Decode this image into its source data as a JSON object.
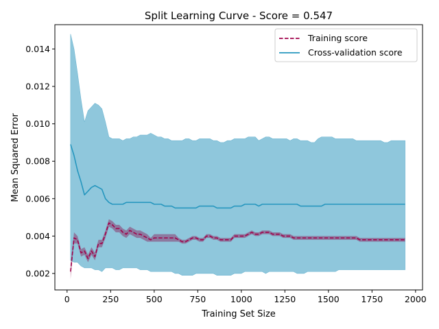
{
  "chart_data": {
    "type": "line",
    "title": "Split Learning Curve - Score = 0.547",
    "xlabel": "Training Set Size",
    "ylabel": "Mean Squared Error",
    "xlim": [
      -70,
      2040
    ],
    "ylim": [
      0.00112,
      0.0153
    ],
    "xticks": [
      0,
      250,
      500,
      750,
      1000,
      1250,
      1500,
      1750,
      2000
    ],
    "xtick_labels": [
      "0",
      "250",
      "500",
      "750",
      "1000",
      "1250",
      "1500",
      "1750",
      "2000"
    ],
    "yticks": [
      0.002,
      0.004,
      0.006,
      0.008,
      0.01,
      0.012,
      0.014
    ],
    "ytick_labels": [
      "0.002",
      "0.004",
      "0.006",
      "0.008",
      "0.010",
      "0.012",
      "0.014"
    ],
    "grid": false,
    "legend": "top-right",
    "x": [
      20,
      40,
      60,
      80,
      100,
      120,
      140,
      160,
      180,
      200,
      220,
      240,
      260,
      280,
      300,
      320,
      340,
      360,
      380,
      400,
      420,
      440,
      460,
      480,
      500,
      520,
      540,
      560,
      580,
      600,
      620,
      640,
      660,
      680,
      700,
      720,
      740,
      760,
      780,
      800,
      820,
      840,
      860,
      880,
      900,
      920,
      940,
      960,
      980,
      1000,
      1020,
      1040,
      1060,
      1080,
      1100,
      1120,
      1140,
      1160,
      1180,
      1200,
      1220,
      1240,
      1260,
      1280,
      1300,
      1320,
      1340,
      1360,
      1380,
      1400,
      1420,
      1440,
      1460,
      1480,
      1500,
      1520,
      1540,
      1560,
      1580,
      1600,
      1620,
      1640,
      1660,
      1680,
      1700,
      1720,
      1740,
      1760,
      1780,
      1800,
      1820,
      1840,
      1860,
      1880,
      1900,
      1920,
      1940
    ],
    "series": [
      {
        "name": "Training score",
        "color": "#a0004a",
        "line_style": "dashed",
        "values": [
          0.0021,
          0.0039,
          0.0038,
          0.0031,
          0.0032,
          0.0028,
          0.0032,
          0.0029,
          0.0036,
          0.0036,
          0.0041,
          0.0047,
          0.0046,
          0.0044,
          0.0044,
          0.0042,
          0.0041,
          0.0043,
          0.0042,
          0.0041,
          0.0041,
          0.004,
          0.0039,
          0.0038,
          0.0039,
          0.0039,
          0.0039,
          0.0039,
          0.0039,
          0.0039,
          0.0039,
          0.0038,
          0.0037,
          0.0037,
          0.0038,
          0.0039,
          0.0039,
          0.0038,
          0.0038,
          0.004,
          0.004,
          0.0039,
          0.0039,
          0.0038,
          0.0038,
          0.0038,
          0.0038,
          0.004,
          0.004,
          0.004,
          0.004,
          0.0041,
          0.0042,
          0.0041,
          0.0041,
          0.0042,
          0.0042,
          0.0042,
          0.0041,
          0.0041,
          0.0041,
          0.004,
          0.004,
          0.004,
          0.0039,
          0.0039,
          0.0039,
          0.0039,
          0.0039,
          0.0039,
          0.0039,
          0.0039,
          0.0039,
          0.0039,
          0.0039,
          0.0039,
          0.0039,
          0.0039,
          0.0039,
          0.0039,
          0.0039,
          0.0039,
          0.0039,
          0.0038,
          0.0038,
          0.0038,
          0.0038,
          0.0038,
          0.0038,
          0.0038,
          0.0038,
          0.0038,
          0.0038,
          0.0038,
          0.0038,
          0.0038,
          0.0038
        ],
        "lower": [
          0.0017,
          0.0036,
          0.0036,
          0.0029,
          0.003,
          0.0026,
          0.003,
          0.0027,
          0.0034,
          0.0034,
          0.0039,
          0.0045,
          0.0044,
          0.0042,
          0.0042,
          0.004,
          0.0039,
          0.0041,
          0.004,
          0.0039,
          0.0039,
          0.0038,
          0.0037,
          0.0037,
          0.0037,
          0.0037,
          0.0037,
          0.0037,
          0.0037,
          0.0037,
          0.0037,
          0.0037,
          0.0036,
          0.0036,
          0.0037,
          0.0038,
          0.0038,
          0.0037,
          0.0037,
          0.0039,
          0.0039,
          0.0038,
          0.0038,
          0.0037,
          0.0037,
          0.0037,
          0.0037,
          0.0039,
          0.0039,
          0.0039,
          0.0039,
          0.004,
          0.0041,
          0.004,
          0.004,
          0.0041,
          0.0041,
          0.0041,
          0.004,
          0.004,
          0.004,
          0.0039,
          0.0039,
          0.0039,
          0.0038,
          0.0038,
          0.0038,
          0.0038,
          0.0038,
          0.0038,
          0.0038,
          0.0038,
          0.0038,
          0.0038,
          0.0038,
          0.0038,
          0.0038,
          0.0038,
          0.0038,
          0.0038,
          0.0038,
          0.0038,
          0.0038,
          0.0037,
          0.0037,
          0.0037,
          0.0037,
          0.0037,
          0.0037,
          0.0037,
          0.0037,
          0.0037,
          0.0037,
          0.0037,
          0.0037,
          0.0037,
          0.0037
        ],
        "upper": [
          0.0025,
          0.0042,
          0.004,
          0.0033,
          0.0034,
          0.003,
          0.0034,
          0.0031,
          0.0038,
          0.0038,
          0.0043,
          0.0049,
          0.0048,
          0.0046,
          0.0046,
          0.0044,
          0.0043,
          0.0045,
          0.0044,
          0.0043,
          0.0043,
          0.0042,
          0.0041,
          0.0039,
          0.0041,
          0.0041,
          0.0041,
          0.0041,
          0.0041,
          0.0041,
          0.0041,
          0.0039,
          0.0038,
          0.0038,
          0.0039,
          0.004,
          0.004,
          0.0039,
          0.0039,
          0.0041,
          0.0041,
          0.004,
          0.004,
          0.0039,
          0.0039,
          0.0039,
          0.0039,
          0.0041,
          0.0041,
          0.0041,
          0.0041,
          0.0042,
          0.0043,
          0.0042,
          0.0042,
          0.0043,
          0.0043,
          0.0043,
          0.0042,
          0.0042,
          0.0042,
          0.0041,
          0.0041,
          0.0041,
          0.004,
          0.004,
          0.004,
          0.004,
          0.004,
          0.004,
          0.004,
          0.004,
          0.004,
          0.004,
          0.004,
          0.004,
          0.004,
          0.004,
          0.004,
          0.004,
          0.004,
          0.004,
          0.004,
          0.0039,
          0.0039,
          0.0039,
          0.0039,
          0.0039,
          0.0039,
          0.0039,
          0.0039,
          0.0039,
          0.0039,
          0.0039,
          0.0039,
          0.0039,
          0.0039
        ]
      },
      {
        "name": "Cross-validation score",
        "color": "#2596be",
        "line_style": "solid",
        "values": [
          0.0089,
          0.0083,
          0.0075,
          0.0069,
          0.0062,
          0.0064,
          0.0066,
          0.0067,
          0.0066,
          0.0065,
          0.006,
          0.0058,
          0.0057,
          0.0057,
          0.0057,
          0.0057,
          0.0058,
          0.0058,
          0.0058,
          0.0058,
          0.0058,
          0.0058,
          0.0058,
          0.0058,
          0.0057,
          0.0057,
          0.0057,
          0.0056,
          0.0056,
          0.0056,
          0.0055,
          0.0055,
          0.0055,
          0.0055,
          0.0055,
          0.0055,
          0.0055,
          0.0056,
          0.0056,
          0.0056,
          0.0056,
          0.0056,
          0.0055,
          0.0055,
          0.0055,
          0.0055,
          0.0055,
          0.0056,
          0.0056,
          0.0056,
          0.0057,
          0.0057,
          0.0057,
          0.0057,
          0.0056,
          0.0057,
          0.0057,
          0.0057,
          0.0057,
          0.0057,
          0.0057,
          0.0057,
          0.0057,
          0.0057,
          0.0057,
          0.0057,
          0.0056,
          0.0056,
          0.0056,
          0.0056,
          0.0056,
          0.0056,
          0.0056,
          0.0057,
          0.0057,
          0.0057,
          0.0057,
          0.0057,
          0.0057,
          0.0057,
          0.0057,
          0.0057,
          0.0057,
          0.0057,
          0.0057,
          0.0057,
          0.0057,
          0.0057,
          0.0057,
          0.0057,
          0.0057,
          0.0057,
          0.0057,
          0.0057,
          0.0057,
          0.0057,
          0.0057
        ],
        "lower": [
          0.0027,
          0.0026,
          0.0026,
          0.0024,
          0.0023,
          0.0023,
          0.0023,
          0.0022,
          0.0022,
          0.0021,
          0.0023,
          0.0023,
          0.0023,
          0.0022,
          0.0022,
          0.0023,
          0.0023,
          0.0023,
          0.0023,
          0.0023,
          0.0022,
          0.0022,
          0.0022,
          0.0021,
          0.0021,
          0.0021,
          0.0021,
          0.0021,
          0.0021,
          0.0021,
          0.002,
          0.002,
          0.0019,
          0.0019,
          0.0019,
          0.0019,
          0.002,
          0.002,
          0.002,
          0.002,
          0.002,
          0.002,
          0.0019,
          0.0019,
          0.0019,
          0.0019,
          0.0019,
          0.002,
          0.002,
          0.002,
          0.0021,
          0.0021,
          0.0021,
          0.0021,
          0.0021,
          0.0021,
          0.002,
          0.0021,
          0.0021,
          0.0021,
          0.0021,
          0.0021,
          0.0021,
          0.0021,
          0.0021,
          0.002,
          0.002,
          0.002,
          0.0021,
          0.0021,
          0.0021,
          0.0021,
          0.0021,
          0.0021,
          0.0021,
          0.0021,
          0.0021,
          0.0022,
          0.0022,
          0.0022,
          0.0022,
          0.0022,
          0.0022,
          0.0022,
          0.0022,
          0.0022,
          0.0022,
          0.0022,
          0.0022,
          0.0022,
          0.0022,
          0.0022,
          0.0022,
          0.0022,
          0.0022,
          0.0022,
          0.0022
        ],
        "upper": [
          0.0148,
          0.014,
          0.0127,
          0.0113,
          0.0101,
          0.0107,
          0.0109,
          0.0111,
          0.011,
          0.0108,
          0.0101,
          0.0093,
          0.0092,
          0.0092,
          0.0092,
          0.0091,
          0.0092,
          0.0092,
          0.0093,
          0.0093,
          0.0094,
          0.0094,
          0.0094,
          0.0095,
          0.0094,
          0.0093,
          0.0093,
          0.0092,
          0.0092,
          0.0091,
          0.0091,
          0.0091,
          0.0091,
          0.0092,
          0.0092,
          0.0091,
          0.0091,
          0.0092,
          0.0092,
          0.0092,
          0.0092,
          0.0091,
          0.0091,
          0.009,
          0.009,
          0.0091,
          0.0091,
          0.0092,
          0.0092,
          0.0092,
          0.0092,
          0.0093,
          0.0093,
          0.0093,
          0.0091,
          0.0092,
          0.0093,
          0.0093,
          0.0092,
          0.0092,
          0.0092,
          0.0092,
          0.0092,
          0.0091,
          0.0092,
          0.0092,
          0.0091,
          0.0091,
          0.0091,
          0.009,
          0.009,
          0.0092,
          0.0093,
          0.0093,
          0.0093,
          0.0093,
          0.0092,
          0.0092,
          0.0092,
          0.0092,
          0.0092,
          0.0092,
          0.0091,
          0.0091,
          0.0091,
          0.0091,
          0.0091,
          0.0091,
          0.0091,
          0.0091,
          0.009,
          0.009,
          0.0091,
          0.0091,
          0.0091,
          0.0091,
          0.0091
        ]
      }
    ]
  }
}
